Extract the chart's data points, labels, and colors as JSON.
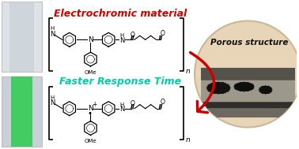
{
  "title": "Electrochromic material",
  "subtitle": "Faster Response Time",
  "porous_label": "Porous structure",
  "title_color": "#cc0000",
  "subtitle_color": "#00ccaa",
  "porous_label_color": "#111111",
  "bg_color": "#ffffff",
  "circle_bg": "#e8d5b8",
  "circle_edge": "#c8b898",
  "arrow_color": "#cc0000",
  "film_bg": "#dde2e6",
  "film_inner": "#c5cdd4",
  "film2_outer": "#c8d0d8",
  "film2_green": "#33cc55"
}
